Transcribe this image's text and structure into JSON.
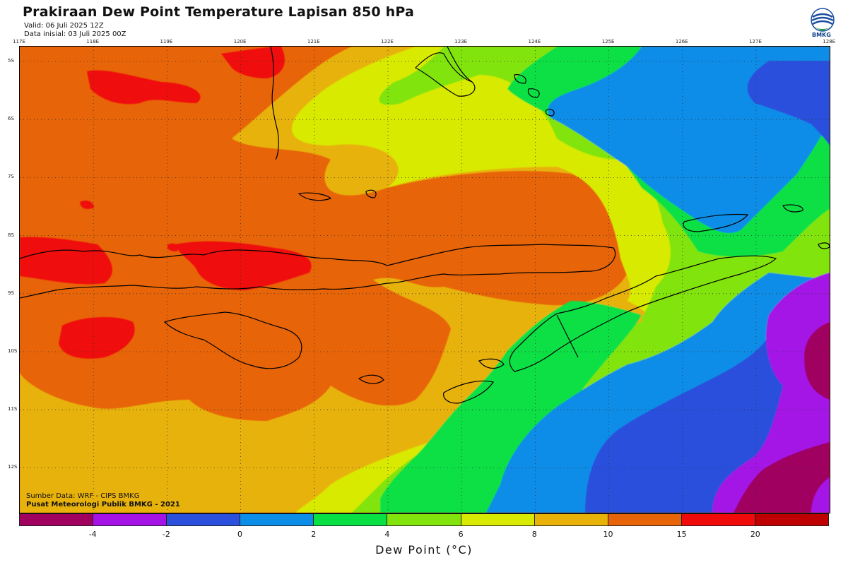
{
  "header": {
    "title": "Prakiraan Dew Point Temperature Lapisan 850 hPa",
    "valid": "Valid: 06 Juli 2025 12Z",
    "initial": "Data inisial: 03 Juli 2025 00Z"
  },
  "logo": {
    "text": "BMKG"
  },
  "axes": {
    "lon_ticks": [
      "117E",
      "118E",
      "119E",
      "120E",
      "121E",
      "122E",
      "123E",
      "124E",
      "125E",
      "126E",
      "127E",
      "128E"
    ],
    "lat_ticks": [
      "5S",
      "6S",
      "7S",
      "8S",
      "9S",
      "10S",
      "11S",
      "12S"
    ]
  },
  "credits": {
    "source": "Sumber Data: WRF - CIPS BMKG",
    "org": "Pusat Meteorologi Publik BMKG - 2021"
  },
  "colorbar": {
    "title": "Dew Point (°C)",
    "labels": [
      "-4",
      "-2",
      "0",
      "2",
      "4",
      "6",
      "8",
      "10",
      "15",
      "20"
    ],
    "colors": [
      "#a0005e",
      "#a412e6",
      "#2a50dc",
      "#0b8de8",
      "#09e044",
      "#82e40c",
      "#d8ea00",
      "#e8b208",
      "#e86408",
      "#f00a0a",
      "#be0000"
    ]
  }
}
